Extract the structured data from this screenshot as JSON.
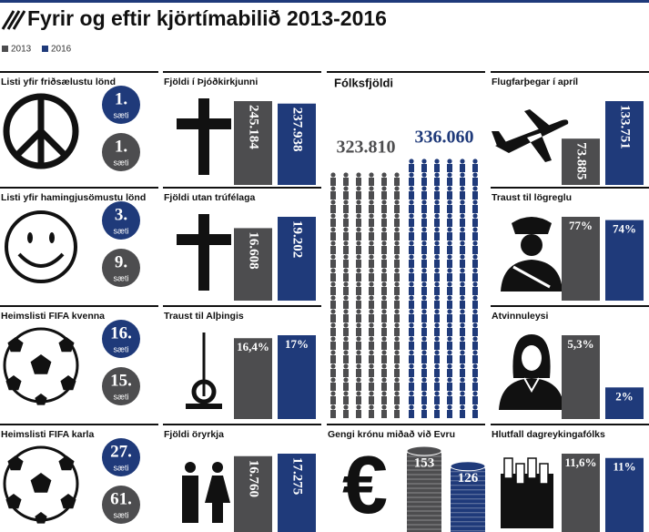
{
  "title": "Fyrir og eftir kjörtímabilið 2013-2016",
  "legend": [
    {
      "name": "2013",
      "color": "#4d4d4f"
    },
    {
      "name": "2016",
      "color": "#1f3a7a"
    }
  ],
  "panels": [
    {
      "kind": "rank",
      "title": "Listi yfir friðsælustu lönd",
      "values": [
        1,
        1
      ],
      "value_labels": [
        "1.",
        "1."
      ],
      "unit": "sæti"
    },
    {
      "kind": "bars",
      "title": "Fjöldi í Þjóðkirkjunni",
      "values": [
        245184,
        237938
      ],
      "value_labels": [
        "245.184",
        "237.938"
      ]
    },
    {
      "kind": "people",
      "title": "Fólksfjöldi",
      "values": [
        323810,
        336060
      ],
      "value_labels": [
        "323.810",
        "336.060"
      ]
    },
    {
      "kind": "bars",
      "title": "Flugfarþegar í apríl",
      "values": [
        73885,
        133751
      ],
      "value_labels": [
        "73.885",
        "133.751"
      ]
    },
    {
      "kind": "rank",
      "title": "Listi yfir hamingjusömustu lönd",
      "values": [
        3,
        9
      ],
      "value_labels": [
        "3.",
        "9."
      ],
      "unit": "sæti"
    },
    {
      "kind": "bars",
      "title": "Fjöldi utan trúfélaga",
      "values": [
        16608,
        19202
      ],
      "value_labels": [
        "16.608",
        "19.202"
      ]
    },
    {
      "kind": "bars",
      "title": "Traust til lögreglu",
      "values": [
        77,
        74
      ],
      "value_labels": [
        "77%",
        "74%"
      ]
    },
    {
      "kind": "rank",
      "title": "Heimslisti FIFA kvenna",
      "values": [
        16,
        15
      ],
      "value_labels": [
        "16.",
        "15."
      ],
      "unit": "sæti"
    },
    {
      "kind": "bars",
      "title": "Traust til Alþingis",
      "values": [
        16.4,
        17
      ],
      "value_labels": [
        "16,4%",
        "17%"
      ]
    },
    {
      "kind": "bars",
      "title": "Atvinnuleysi",
      "values": [
        5.3,
        2
      ],
      "value_labels": [
        "5,3%",
        "2%"
      ]
    },
    {
      "kind": "rank",
      "title": "Heimslisti FIFA karla",
      "values": [
        27,
        61
      ],
      "value_labels": [
        "27.",
        "61."
      ],
      "unit": "sæti"
    },
    {
      "kind": "bars",
      "title": "Fjöldi öryrkja",
      "values": [
        16760,
        17275
      ],
      "value_labels": [
        "16.760",
        "17.275"
      ]
    },
    {
      "kind": "coins",
      "title": "Gengi krónu miðað við Evru",
      "values": [
        153,
        126
      ],
      "value_labels": [
        "153",
        "126"
      ]
    },
    {
      "kind": "bars",
      "title": "Hlutfall dagreykingafólks",
      "values": [
        11.6,
        11
      ],
      "value_labels": [
        "11,6%",
        "11%"
      ]
    }
  ]
}
